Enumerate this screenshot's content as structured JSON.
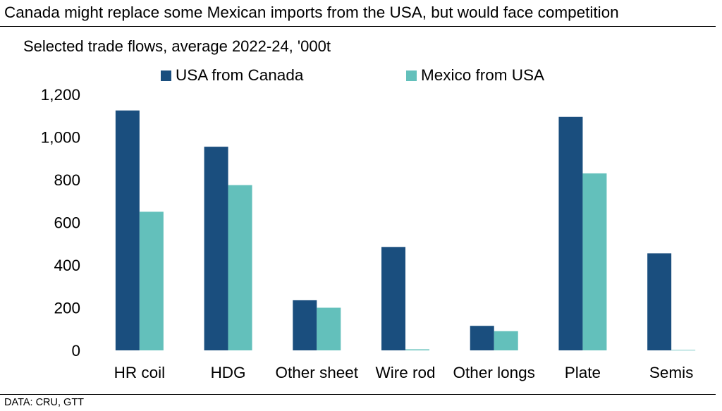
{
  "header": {
    "title": "Canada might replace some Mexican imports from the USA, but would face competition",
    "subtitle": "Selected trade flows, average 2022-24, '000t"
  },
  "footer": {
    "source": "DATA: CRU, GTT"
  },
  "colors": {
    "usa_from_canada": "#1a4e7e",
    "mexico_from_usa": "#63c0bb"
  },
  "chart_data": {
    "type": "bar",
    "title": "Canada might replace some Mexican imports from the USA, but would face competition",
    "subtitle": "Selected trade flows, average 2022-24, '000t",
    "categories": [
      "HR coil",
      "HDG",
      "Other sheet",
      "Wire rod",
      "Other longs",
      "Plate",
      "Semis"
    ],
    "series": [
      {
        "name": "USA from Canada",
        "values": [
          1125,
          955,
          235,
          485,
          115,
          1095,
          455
        ]
      },
      {
        "name": "Mexico from USA",
        "values": [
          650,
          775,
          200,
          5,
          90,
          830,
          2
        ]
      }
    ],
    "xlabel": "",
    "ylabel": "",
    "ylim": [
      0,
      1200
    ],
    "yticks": [
      0,
      200,
      400,
      600,
      800,
      1000,
      1200
    ],
    "ytick_labels": [
      "0",
      "200",
      "400",
      "600",
      "800",
      "1,000",
      "1,200"
    ],
    "grid": false,
    "legend_position": "top"
  }
}
